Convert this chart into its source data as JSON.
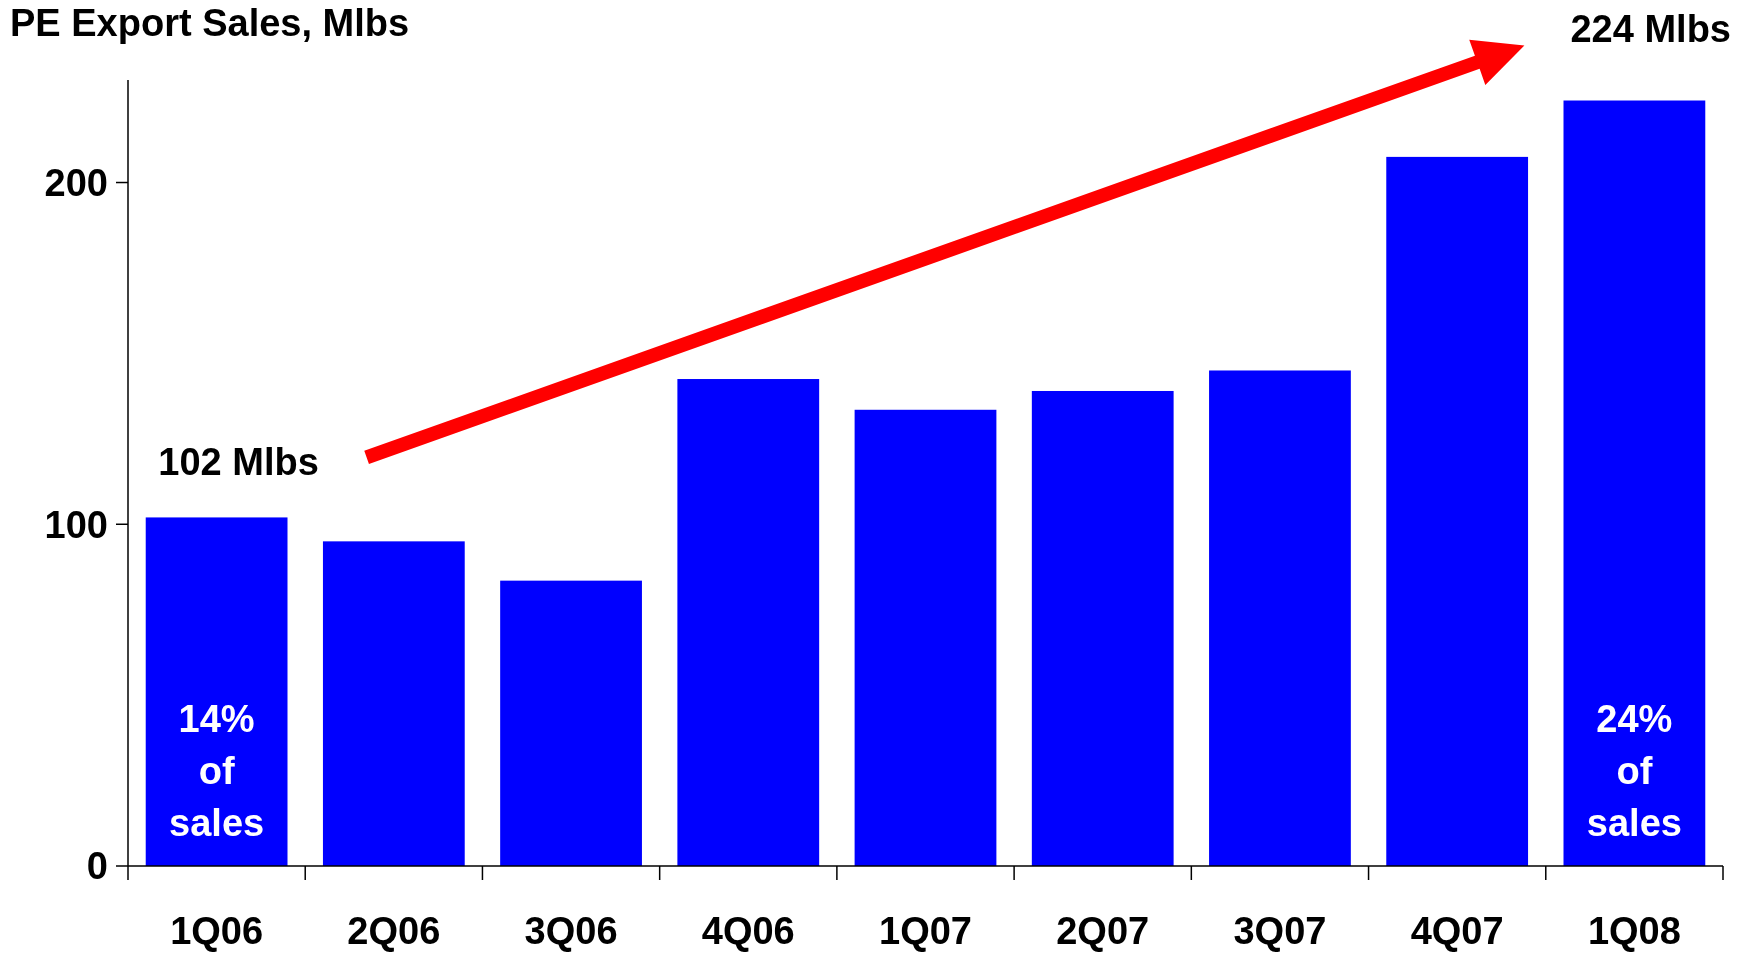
{
  "chart_data": {
    "type": "bar",
    "title": "PE Export Sales, Mlbs",
    "categories": [
      "1Q06",
      "2Q06",
      "3Q06",
      "4Q06",
      "1Q07",
      "2Q07",
      "3Q07",
      "4Q07",
      "1Q08"
    ],
    "values": [
      102,
      95,
      83.5,
      142.5,
      133.5,
      139,
      145,
      207.5,
      224
    ],
    "color": "#0000ff",
    "ylim": [
      0,
      230
    ],
    "yticks": [
      0,
      100,
      200
    ],
    "grid": false,
    "annotations": [
      "102 Mlbs",
      "224 Mlbs",
      "14% of sales",
      "24% of sales"
    ]
  }
}
